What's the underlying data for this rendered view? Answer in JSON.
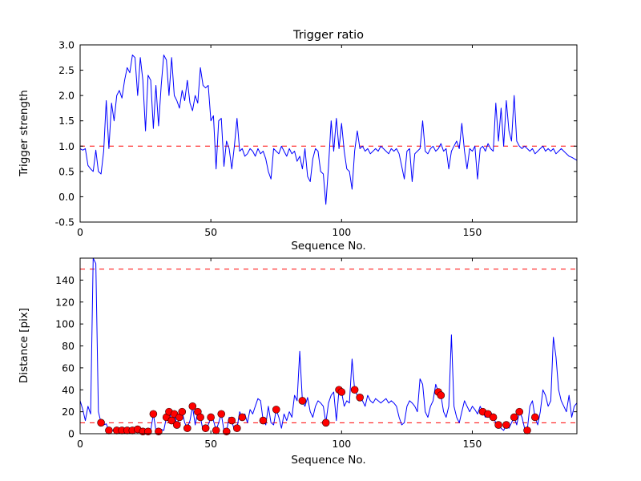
{
  "chart_data": [
    {
      "type": "line",
      "title": "Trigger ratio",
      "xlabel": "Sequence No.",
      "ylabel": "Trigger strength",
      "xlim": [
        0,
        190
      ],
      "ylim": [
        -0.5,
        3.0
      ],
      "xticks": [
        0,
        50,
        100,
        150
      ],
      "xtick_labels": [
        "0",
        "50",
        "100",
        "150"
      ],
      "yticks": [
        -0.5,
        0.0,
        0.5,
        1.0,
        1.5,
        2.0,
        2.5,
        3.0
      ],
      "ytick_labels": [
        "-0.5",
        "0.0",
        "0.5",
        "1.0",
        "1.5",
        "2.0",
        "2.5",
        "3.0"
      ],
      "grid": false,
      "legend": "none",
      "line_color": "#0000ff",
      "threshold_lines": [
        {
          "y": 1.0,
          "color": "#ff0000",
          "style": "dashed"
        }
      ],
      "x_start": 0,
      "x_step": 1,
      "y": [
        0.95,
        0.92,
        0.95,
        0.62,
        0.55,
        0.5,
        0.92,
        0.5,
        0.45,
        0.9,
        1.9,
        0.95,
        1.85,
        1.5,
        2.0,
        2.1,
        1.95,
        2.3,
        2.55,
        2.45,
        2.8,
        2.75,
        2.0,
        2.75,
        2.3,
        1.3,
        2.4,
        2.3,
        1.35,
        2.2,
        1.4,
        2.2,
        2.8,
        2.7,
        2.0,
        2.75,
        2.0,
        1.9,
        1.75,
        2.1,
        1.9,
        2.3,
        1.85,
        1.7,
        2.0,
        1.85,
        2.55,
        2.2,
        2.15,
        2.2,
        1.5,
        1.6,
        0.55,
        1.5,
        1.55,
        0.6,
        1.1,
        0.95,
        0.55,
        1.0,
        1.55,
        0.9,
        0.95,
        0.8,
        0.85,
        0.95,
        0.9,
        0.8,
        0.95,
        0.85,
        0.9,
        0.75,
        0.5,
        0.35,
        0.95,
        0.9,
        0.85,
        1.0,
        0.9,
        0.8,
        0.95,
        0.85,
        0.9,
        0.7,
        0.8,
        0.55,
        0.95,
        0.4,
        0.3,
        0.75,
        0.95,
        0.9,
        0.5,
        0.45,
        -0.15,
        0.6,
        1.5,
        0.9,
        1.55,
        0.95,
        1.45,
        0.9,
        0.55,
        0.5,
        0.15,
        0.9,
        1.3,
        0.95,
        1.0,
        0.9,
        0.95,
        0.85,
        0.9,
        0.95,
        0.9,
        1.0,
        0.95,
        0.9,
        0.85,
        0.95,
        0.9,
        0.95,
        0.85,
        0.6,
        0.35,
        0.9,
        0.95,
        0.3,
        0.85,
        0.9,
        0.95,
        1.5,
        0.9,
        0.85,
        0.95,
        1.0,
        0.9,
        0.95,
        1.05,
        0.9,
        0.95,
        0.55,
        0.9,
        1.0,
        1.1,
        0.95,
        1.45,
        0.9,
        0.55,
        0.95,
        0.9,
        1.0,
        0.35,
        0.95,
        1.0,
        0.9,
        1.05,
        0.95,
        0.9,
        1.85,
        1.1,
        1.75,
        1.0,
        1.9,
        1.3,
        1.1,
        2.0,
        1.1,
        1.0,
        0.95,
        1.0,
        0.95,
        0.9,
        0.95,
        0.85,
        0.9,
        0.95,
        1.0,
        0.9,
        0.95,
        0.9,
        0.95,
        0.85,
        0.9,
        0.95,
        0.9,
        0.85,
        0.8,
        0.78,
        0.75,
        0.72
      ]
    },
    {
      "type": "line",
      "title": "",
      "xlabel": "Sequence No.",
      "ylabel": "Distance [pix]",
      "xlim": [
        0,
        190
      ],
      "ylim": [
        0,
        160
      ],
      "xticks": [
        0,
        50,
        100,
        150
      ],
      "xtick_labels": [
        "0",
        "50",
        "100",
        "150"
      ],
      "yticks": [
        0,
        20,
        40,
        60,
        80,
        100,
        120,
        140
      ],
      "ytick_labels": [
        "0",
        "20",
        "40",
        "60",
        "80",
        "100",
        "120",
        "140"
      ],
      "grid": false,
      "legend": "none",
      "line_color": "#0000ff",
      "marker_color": "#ff0000",
      "threshold_lines": [
        {
          "y": 150,
          "color": "#ff0000",
          "style": "dashed"
        },
        {
          "y": 10,
          "color": "#ff0000",
          "style": "dashed"
        }
      ],
      "x_start": 0,
      "x_step": 1,
      "y": [
        30,
        22,
        12,
        25,
        18,
        160,
        155,
        20,
        10,
        8,
        9,
        3,
        2,
        4,
        3,
        2,
        3,
        2,
        3,
        2,
        3,
        2,
        4,
        3,
        2,
        3,
        2,
        3,
        18,
        3,
        2,
        4,
        3,
        15,
        20,
        12,
        18,
        8,
        15,
        20,
        10,
        5,
        12,
        25,
        8,
        20,
        15,
        3,
        5,
        8,
        15,
        12,
        3,
        10,
        18,
        3,
        2,
        15,
        12,
        3,
        5,
        20,
        15,
        18,
        10,
        22,
        18,
        25,
        32,
        30,
        12,
        8,
        25,
        10,
        8,
        22,
        15,
        5,
        18,
        12,
        20,
        15,
        35,
        30,
        75,
        30,
        25,
        33,
        20,
        15,
        25,
        30,
        28,
        25,
        10,
        28,
        35,
        38,
        12,
        40,
        38,
        25,
        30,
        28,
        68,
        40,
        35,
        33,
        30,
        25,
        35,
        30,
        28,
        32,
        30,
        28,
        30,
        32,
        28,
        30,
        28,
        25,
        15,
        8,
        10,
        25,
        30,
        28,
        25,
        20,
        50,
        45,
        20,
        15,
        25,
        30,
        45,
        38,
        35,
        20,
        15,
        25,
        90,
        25,
        15,
        10,
        20,
        30,
        25,
        20,
        25,
        22,
        18,
        25,
        20,
        15,
        18,
        20,
        15,
        10,
        8,
        5,
        3,
        8,
        5,
        10,
        15,
        8,
        20,
        15,
        5,
        3,
        25,
        30,
        15,
        8,
        20,
        40,
        35,
        25,
        30,
        88,
        70,
        40,
        30,
        25,
        20,
        35,
        15,
        25,
        28
      ],
      "marker_x": [
        8,
        11,
        14,
        16,
        18,
        20,
        22,
        24,
        26,
        28,
        30,
        33,
        34,
        35,
        36,
        37,
        38,
        39,
        41,
        43,
        45,
        46,
        48,
        50,
        52,
        54,
        56,
        58,
        60,
        62,
        70,
        75,
        85,
        94,
        99,
        100,
        105,
        107,
        137,
        138,
        154,
        156,
        158,
        160,
        163,
        166,
        168,
        171,
        174
      ]
    }
  ],
  "figure": {
    "background_color": "#ffffff",
    "frame_color": "#000000"
  }
}
